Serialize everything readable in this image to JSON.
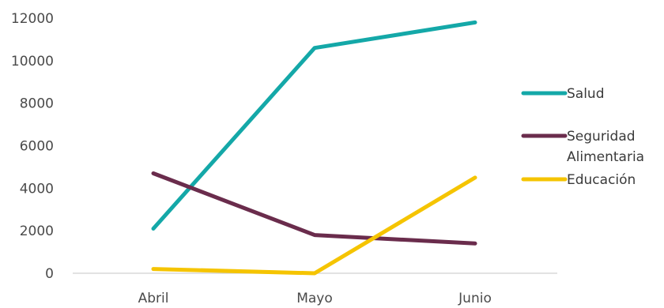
{
  "chart_data": {
    "type": "line",
    "title": "",
    "xlabel": "",
    "ylabel": "",
    "categories": [
      "Abril",
      "Mayo",
      "Junio"
    ],
    "ylim": [
      0,
      12000
    ],
    "yticks": [
      0,
      2000,
      4000,
      6000,
      8000,
      10000,
      12000
    ],
    "grid": false,
    "legend": "right",
    "series": [
      {
        "name": "Salud",
        "values": [
          2100,
          10600,
          11800
        ],
        "color": "#14a8a8"
      },
      {
        "name": "Seguridad Alimentaria",
        "name_lines": [
          "Seguridad",
          "Alimentaria"
        ],
        "values": [
          4700,
          1800,
          1400
        ],
        "color": "#6a2c4c"
      },
      {
        "name": "Educación",
        "values": [
          200,
          0,
          4500
        ],
        "color": "#f5c400"
      }
    ]
  }
}
